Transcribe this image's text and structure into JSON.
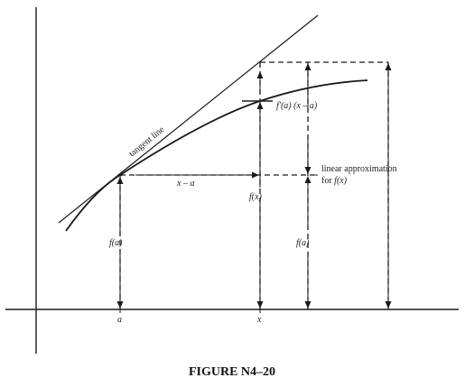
{
  "labels": {
    "tangent_line": "tangent line",
    "f_prime_term_fn": "f′(a)",
    "f_prime_term_rest": " (x – a)",
    "x_minus_a": "x – a",
    "f_x": "f(x)",
    "f_a_left": "f(a)",
    "f_a_right": "f(a)",
    "linear_approx_line1": "linear approximation",
    "linear_approx_line2_word": "for ",
    "linear_approx_line2_fn": "f(x)",
    "tick_a": "a",
    "tick_x": "x"
  },
  "caption": "FIGURE N4–20",
  "colors": {
    "ink": "#1a1a1a",
    "background": "#ffffff"
  }
}
